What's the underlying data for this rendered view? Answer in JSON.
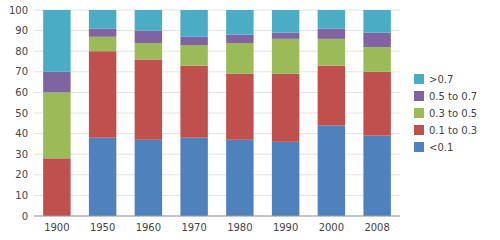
{
  "chart_data": {
    "type": "bar",
    "stacked": true,
    "grid": true,
    "legend": "right",
    "categories": [
      "1900",
      "1950",
      "1960",
      "1970",
      "1980",
      "1990",
      "2000",
      "2008"
    ],
    "series": [
      {
        "name": "<0.1",
        "color": "#4F81BD",
        "values": [
          0,
          38,
          37,
          38,
          37,
          36,
          44,
          39
        ]
      },
      {
        "name": "0.1 to 0.3",
        "color": "#C0504D",
        "values": [
          28,
          42,
          39,
          35,
          32,
          33,
          29,
          31
        ]
      },
      {
        "name": "0.3 to 0.5",
        "color": "#9BBB59",
        "values": [
          32,
          7,
          8,
          10,
          15,
          17,
          13,
          12
        ]
      },
      {
        "name": "0.5 to 0.7",
        "color": "#8064A2",
        "values": [
          10,
          4,
          6,
          4,
          4,
          3,
          5,
          7
        ]
      },
      {
        "name": ">0.7",
        "color": "#4BACC6",
        "values": [
          30,
          9,
          10,
          13,
          12,
          11,
          9,
          11
        ]
      }
    ],
    "ylim": [
      0,
      100
    ],
    "yticks": [
      0,
      10,
      20,
      30,
      40,
      50,
      60,
      70,
      80,
      90,
      100
    ]
  }
}
